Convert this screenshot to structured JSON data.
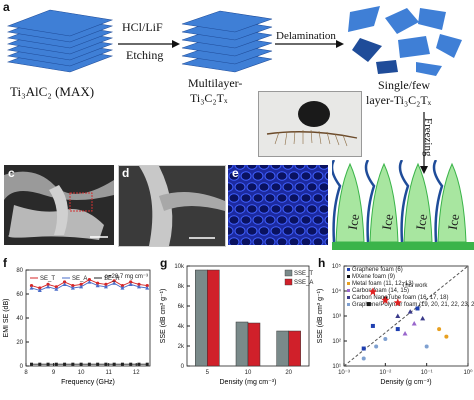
{
  "figure": {
    "panel_labels": {
      "a": "a",
      "b": "b",
      "c": "c",
      "d": "d",
      "e": "e",
      "f": "f",
      "g": "g",
      "h": "h"
    },
    "schematic": {
      "max_label": "Ti₃AlC₂ (MAX)",
      "etch_top": "HCl/LiF",
      "etch_bottom": "Etching",
      "multilayer_line1": "Multilayer-",
      "multilayer_line2": "Ti₃C₂Tₓ",
      "delamination": "Delamination",
      "single_line1": "Single/few",
      "single_line2": "layer-Ti₃C₂Tₓ",
      "freezing": "Freezing",
      "ice_label": "Ice"
    },
    "colors": {
      "layer": "#3f7fd6",
      "layer_dark": "#1f4c99",
      "ice": "#3bb44a",
      "ice_light": "#a8e6a0",
      "foam": "#2438b8"
    }
  },
  "chart_data": [
    {
      "panel": "f",
      "type": "line",
      "xlabel": "Frequency (GHz)",
      "ylabel": "EMI SE (dB)",
      "xlim": [
        8,
        12.5
      ],
      "ylim": [
        0,
        80
      ],
      "xticks": [
        8,
        9,
        10,
        11,
        12
      ],
      "yticks": [
        0,
        20,
        40,
        60,
        80
      ],
      "annotation": "ρ=20.7 mg cm⁻³",
      "series": [
        {
          "name": "SE_T",
          "color": "#d62728",
          "marker": "star",
          "x": [
            8.2,
            8.5,
            8.8,
            9.1,
            9.4,
            9.7,
            10.0,
            10.3,
            10.6,
            10.9,
            11.2,
            11.5,
            11.8,
            12.1,
            12.4
          ],
          "y": [
            67,
            65,
            68,
            66,
            70,
            67,
            68,
            72,
            69,
            68,
            71,
            67,
            70,
            68,
            67
          ]
        },
        {
          "name": "SE_A",
          "color": "#4a6cc9",
          "marker": "triangle",
          "x": [
            8.2,
            8.5,
            8.8,
            9.1,
            9.4,
            9.7,
            10.0,
            10.3,
            10.6,
            10.9,
            11.2,
            11.5,
            11.8,
            12.1,
            12.4
          ],
          "y": [
            65,
            63,
            66,
            64,
            68,
            65,
            66,
            70,
            67,
            66,
            69,
            65,
            68,
            66,
            65
          ]
        },
        {
          "name": "SE_R",
          "color": "#222222",
          "marker": "square",
          "x": [
            8.2,
            8.5,
            8.8,
            9.1,
            9.4,
            9.7,
            10.0,
            10.3,
            10.6,
            10.9,
            11.2,
            11.5,
            11.8,
            12.1,
            12.4
          ],
          "y": [
            1.5,
            1.5,
            1.5,
            1.5,
            1.5,
            1.5,
            1.5,
            1.5,
            1.5,
            1.5,
            1.5,
            1.5,
            1.5,
            1.5,
            1.5
          ]
        }
      ]
    },
    {
      "panel": "g",
      "type": "bar",
      "xlabel": "Density (mg cm⁻³)",
      "ylabel": "SSE (dB cm³ g⁻¹)",
      "categories": [
        "5",
        "10",
        "20"
      ],
      "ylim": [
        0,
        10000
      ],
      "yticks": [
        0,
        2000,
        4000,
        6000,
        8000,
        10000
      ],
      "ytick_labels": [
        "0",
        "2k",
        "4k",
        "6k",
        "8k",
        "10k"
      ],
      "legend": "top-right",
      "series": [
        {
          "name": "SSE_T",
          "color": "#7a8a8a",
          "values": [
            9600,
            4400,
            3500
          ]
        },
        {
          "name": "SSE_A",
          "color": "#d0202a",
          "values": [
            9600,
            4300,
            3500
          ]
        }
      ]
    },
    {
      "panel": "h",
      "type": "scatter",
      "xlabel": "Density (g cm⁻³)",
      "ylabel": "SSE (dB cm³ g⁻¹)",
      "xscale": "log",
      "yscale": "log",
      "xlim": [
        0.001,
        1
      ],
      "ylim": [
        10,
        100000
      ],
      "xticks": [
        0.001,
        0.01,
        0.1,
        1
      ],
      "xtick_labels": [
        "10⁻³",
        "10⁻²",
        "10⁻¹",
        "10⁰"
      ],
      "yticks": [
        10,
        100,
        1000,
        10000,
        100000
      ],
      "ytick_labels": [
        "10¹",
        "10²",
        "10³",
        "10⁴",
        "10⁵"
      ],
      "highlight_label": "This work",
      "legend": "top-left",
      "series": [
        {
          "name": "Graphene foam",
          "ref": "(6)",
          "color": "#1f3fb0",
          "marker": "square",
          "x": [
            0.003,
            0.005,
            0.02,
            0.06
          ],
          "y": [
            50,
            400,
            300,
            2000
          ]
        },
        {
          "name": "MXene foam",
          "ref": "(9)",
          "color": "#111111",
          "marker": "square",
          "x": [
            0.004,
            0.01
          ],
          "y": [
            3000,
            5000
          ]
        },
        {
          "name": "Metal foam",
          "ref": "(11, 12, 13)",
          "color": "#e8a020",
          "marker": "circle",
          "x": [
            0.2,
            0.3
          ],
          "y": [
            300,
            150
          ]
        },
        {
          "name": "Carbon foam",
          "ref": "(14, 15)",
          "color": "#9966cc",
          "marker": "triangle",
          "x": [
            0.03,
            0.05
          ],
          "y": [
            200,
            500
          ]
        },
        {
          "name": "Carbon NanoTube foam",
          "ref": "(16, 17, 18)",
          "color": "#3a3a8a",
          "marker": "triangle",
          "x": [
            0.02,
            0.04,
            0.08
          ],
          "y": [
            1000,
            1500,
            800
          ]
        },
        {
          "name": "Graphene/Polymer foam",
          "ref": "(19, 20, 21, 22, 23, 24)",
          "color": "#7fa0d0",
          "marker": "circle",
          "x": [
            0.003,
            0.006,
            0.01,
            0.1
          ],
          "y": [
            20,
            60,
            120,
            60
          ]
        },
        {
          "name": "This work",
          "color": "#e02020",
          "marker": "star",
          "x": [
            0.005,
            0.01,
            0.02
          ],
          "y": [
            9600,
            4400,
            3500
          ]
        }
      ]
    }
  ]
}
